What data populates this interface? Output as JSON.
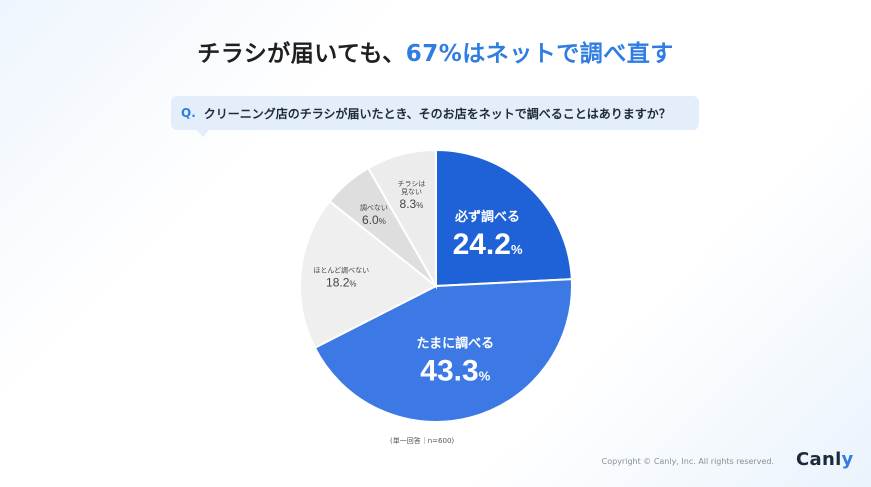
{
  "headline": {
    "plain": "チラシが届いても、",
    "accent": "67%は",
    "accent2": "ネットで調べ直す"
  },
  "question": {
    "label": "Q.",
    "text": "クリーニング店のチラシが届いたとき、そのお店をネットで調べることはありますか？"
  },
  "chart_data": {
    "type": "pie",
    "title": "クリーニング店のチラシが届いたとき、そのお店をネットで調べることはありますか？",
    "start": "12 o'clock, clockwise",
    "slices": [
      {
        "label": "必ず調べる",
        "value": 24.2,
        "display": "24.2",
        "color": "#1f61d6",
        "label_style": "inside-large"
      },
      {
        "label": "たまに調べる",
        "value": 43.3,
        "display": "43.3",
        "color": "#3c79e4",
        "label_style": "inside-large"
      },
      {
        "label": "ほとんど調べない",
        "value": 18.2,
        "display": "18.2",
        "color": "#efefef",
        "label_style": "inside-small"
      },
      {
        "label": "調べない",
        "value": 6.0,
        "display": "6.0",
        "color": "#dedede",
        "label_style": "inside-small"
      },
      {
        "label": "チラシは\n見ない",
        "value": 8.3,
        "display": "8.3",
        "color": "#ececec",
        "label_style": "inside-small"
      }
    ],
    "unit": "%",
    "note": "(単一回答｜n=600)"
  },
  "footer": {
    "copyright": "Copyright © Canly, Inc. All rights reserved.",
    "logo": "Canl",
    "logo_accent": "y"
  }
}
